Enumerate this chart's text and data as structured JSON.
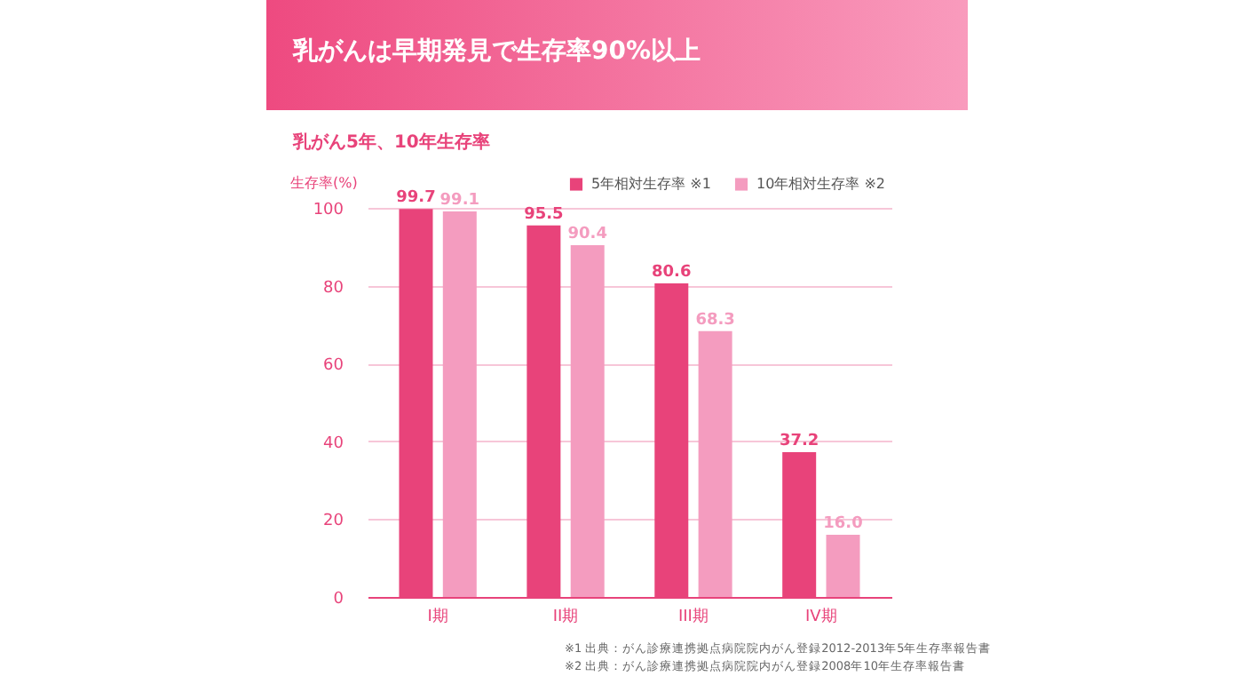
{
  "chart_data": {
    "type": "bar",
    "title": "乳がんは早期発見で生存率90%以上",
    "subtitle": "乳がん5年、10年生存率",
    "ylabel": "生存率(%)",
    "categories": [
      "I期",
      "II期",
      "III期",
      "IV期"
    ],
    "series": [
      {
        "name": "5年相対生存率 ※1",
        "color": "#e8437a",
        "values": [
          99.7,
          95.5,
          80.6,
          37.2
        ]
      },
      {
        "name": "10年相対生存率 ※2",
        "color": "#f49cbf",
        "values": [
          99.1,
          90.4,
          68.3,
          16.0
        ]
      }
    ],
    "ylim": [
      0,
      100
    ],
    "yticks": [
      0,
      20,
      40,
      60,
      80,
      100
    ],
    "grid": "y",
    "legend": "top right",
    "value_labels": [
      [
        "99.7",
        "95.5",
        "80.6",
        "37.2"
      ],
      [
        "99.1",
        "90.4",
        "68.3",
        "16.0"
      ]
    ],
    "annotations": [
      "※1 出典：がん診療連携拠点病院院内がん登録2012-2013年5年生存率報告書",
      "※2 出典：がん診療連携拠点病院院内がん登録2008年10年生存率報告書"
    ]
  }
}
